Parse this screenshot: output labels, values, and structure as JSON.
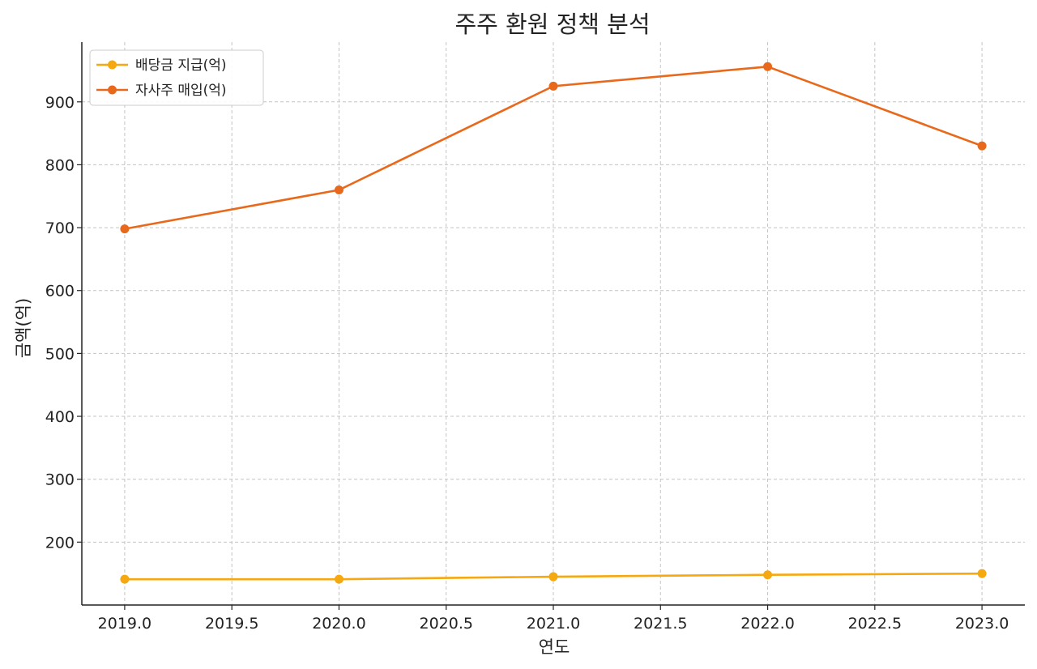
{
  "chart_data": {
    "type": "line",
    "title": "주주 환원 정책 분석",
    "xlabel": "연도",
    "ylabel": "금액(억)",
    "x": [
      2019,
      2020,
      2021,
      2022,
      2023
    ],
    "xlim": [
      2018.8,
      2023.2
    ],
    "ylim": [
      100,
      995
    ],
    "xticks": [
      "2019.0",
      "2019.5",
      "2020.0",
      "2020.5",
      "2021.0",
      "2021.5",
      "2022.0",
      "2022.5",
      "2023.0"
    ],
    "yticks": [
      "200",
      "300",
      "400",
      "500",
      "600",
      "700",
      "800",
      "900"
    ],
    "grid": true,
    "legend_position": "top-left",
    "series": [
      {
        "name": "배당금 지급(억)",
        "color": "#f5a80f",
        "values": [
          141,
          141,
          145,
          148,
          150
        ]
      },
      {
        "name": "자사주 매입(억)",
        "color": "#e8691c",
        "values": [
          698,
          760,
          925,
          956,
          830
        ]
      }
    ]
  }
}
